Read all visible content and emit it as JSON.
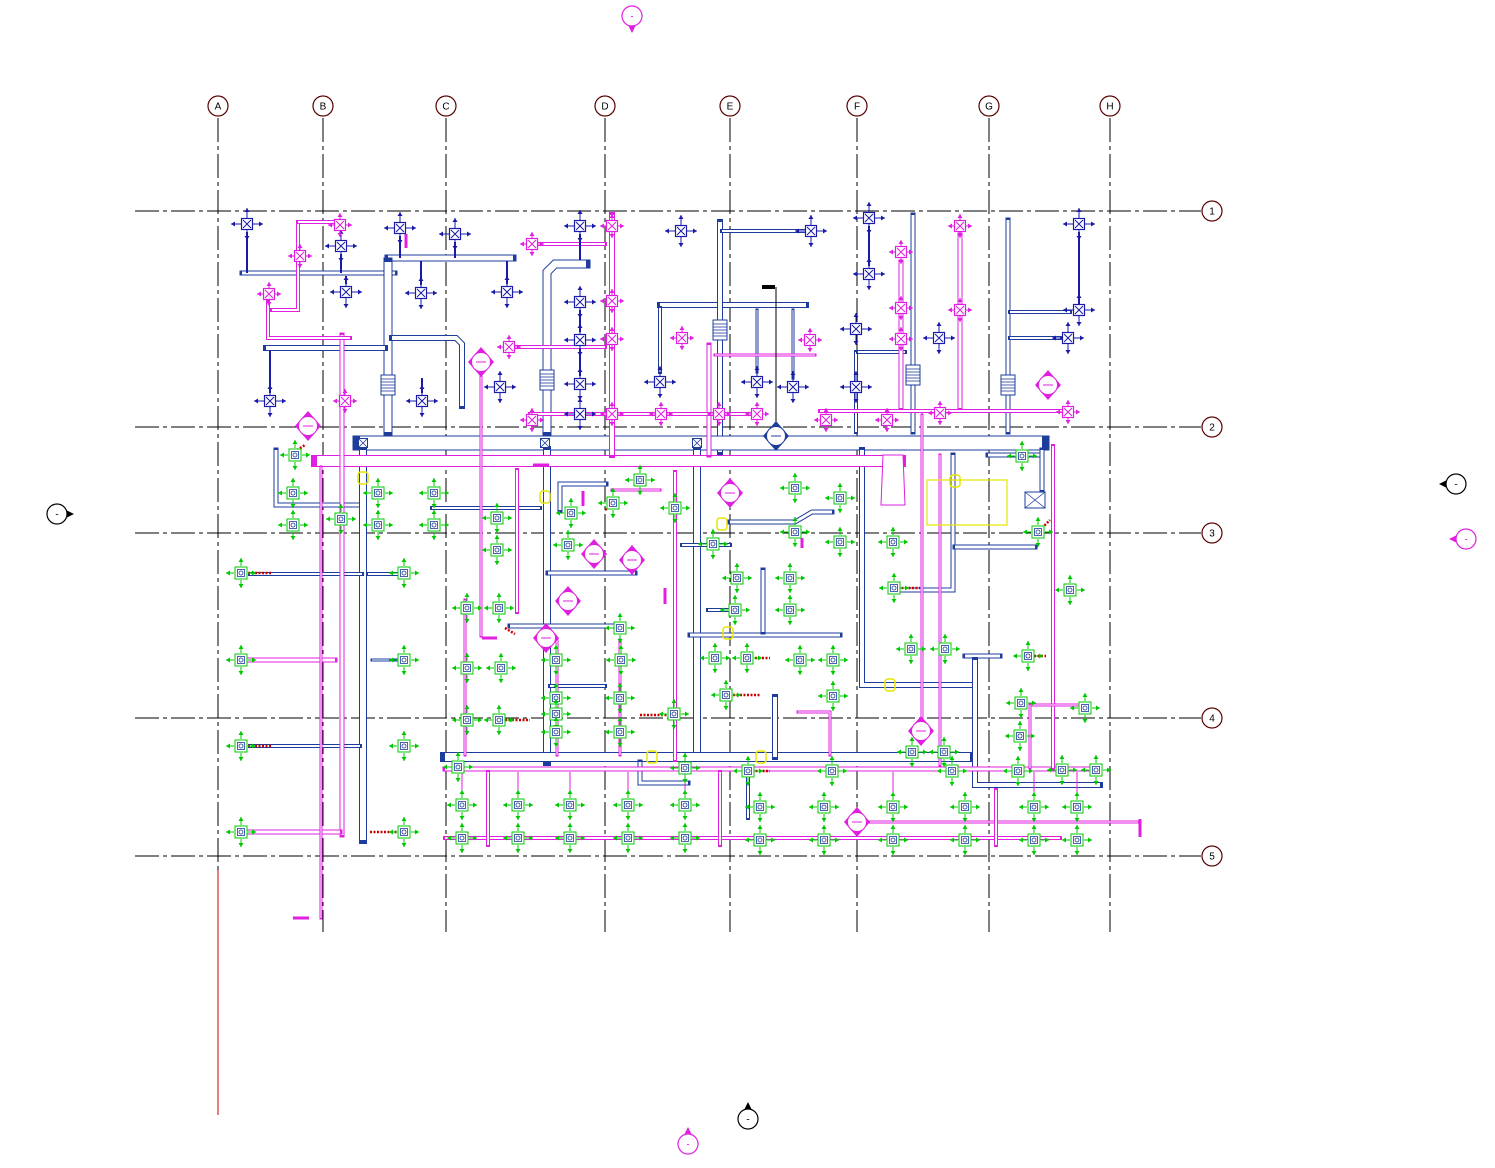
{
  "drawing": {
    "grid_columns": [
      "A",
      "B",
      "C",
      "D",
      "E",
      "F",
      "G",
      "H"
    ],
    "grid_rows": [
      "1",
      "2",
      "3",
      "4",
      "5"
    ],
    "view_markers": [
      "-",
      "-",
      "-",
      "-",
      "-",
      "-"
    ]
  },
  "colors": {
    "background": "#ffffff",
    "grid": "#000000",
    "grid_bubble": "#5a0000",
    "supply_duct": "#1d3c9c",
    "return_duct": "#e01fe0",
    "air_terminal": "#00c800",
    "terminal_blue": "#1a1aa8",
    "flex_duct": "#cc0000",
    "equipment": "#e6e600",
    "annotation": "#000000"
  }
}
